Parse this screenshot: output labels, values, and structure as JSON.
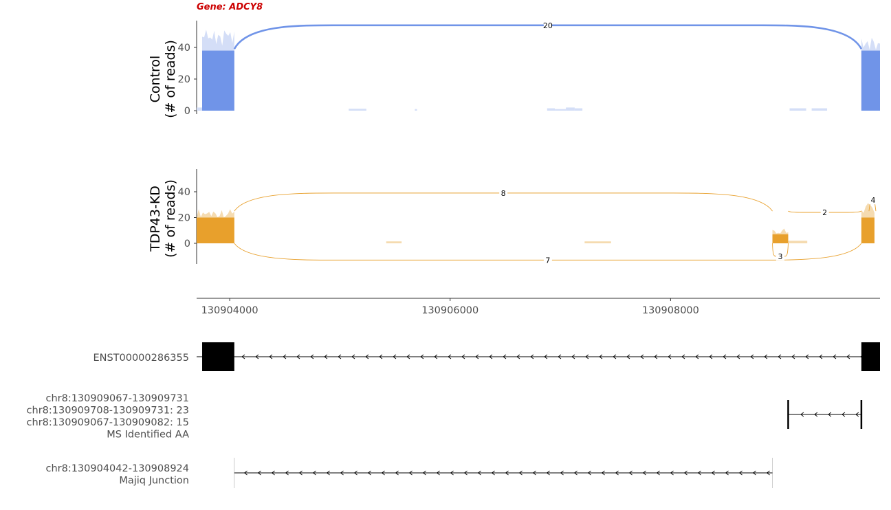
{
  "gene_title": "Gene: ADCY8",
  "chart_data": {
    "type": "area",
    "xaxis": {
      "range": [
        130903700,
        130909900
      ],
      "ticks": [
        130904000,
        130906000,
        130908000
      ],
      "tick_labels": [
        "130904000",
        "130906000",
        "130908000"
      ]
    },
    "panels": [
      {
        "key": "control",
        "ylabel_line1": "Control",
        "ylabel_line2": "(# of reads)",
        "color": "#7094e8",
        "fill_light": "#d4def7",
        "yticks": [
          0,
          20,
          40
        ],
        "ylim": [
          0,
          57
        ],
        "coverage_blocks": [
          {
            "start": 130903700,
            "end": 130903750,
            "height": 2
          },
          {
            "start": 130903750,
            "end": 130904042,
            "height": 38,
            "peak": 52
          },
          {
            "start": 130905080,
            "end": 130905240,
            "height": 1.2
          },
          {
            "start": 130905680,
            "end": 130905700,
            "height": 1
          },
          {
            "start": 130906880,
            "end": 130906950,
            "height": 1.5
          },
          {
            "start": 130906950,
            "end": 130907050,
            "height": 1
          },
          {
            "start": 130907050,
            "end": 130907130,
            "height": 2
          },
          {
            "start": 130907130,
            "end": 130907200,
            "height": 1.5
          },
          {
            "start": 130909080,
            "end": 130909230,
            "height": 1.5
          },
          {
            "start": 130909280,
            "end": 130909420,
            "height": 1.5
          },
          {
            "start": 130909731,
            "end": 130909900,
            "height": 38,
            "peak": 48
          }
        ],
        "junctions": [
          {
            "start": 130904042,
            "end": 130909731,
            "count": "20",
            "side": "top",
            "apex": 54
          }
        ]
      },
      {
        "key": "tdp43",
        "ylabel_line1": "TDP43-KD",
        "ylabel_line2": "(# of reads)",
        "color": "#e8a02c",
        "fill_light": "#f5dbb0",
        "yticks": [
          0,
          20,
          40
        ],
        "ylim": [
          -16,
          57
        ],
        "coverage_blocks": [
          {
            "start": 130903700,
            "end": 130904042,
            "height": 20,
            "peak": 27
          },
          {
            "start": 130905420,
            "end": 130905560,
            "height": 1.5
          },
          {
            "start": 130907220,
            "end": 130907460,
            "height": 1.5
          },
          {
            "start": 130908924,
            "end": 130909067,
            "height": 7,
            "peak": 12
          },
          {
            "start": 130909067,
            "end": 130909240,
            "height": 2
          },
          {
            "start": 130909731,
            "end": 130909850,
            "height": 20,
            "peak": 32
          }
        ],
        "junctions": [
          {
            "start": 130904042,
            "end": 130908924,
            "count": "8",
            "side": "top",
            "apex": 39
          },
          {
            "start": 130904042,
            "end": 130909731,
            "count": "7",
            "side": "bottom",
            "apex": -13
          },
          {
            "start": 130909067,
            "end": 130909731,
            "count": "2",
            "side": "top",
            "apex": 24
          },
          {
            "start": 130908924,
            "end": 130909067,
            "count": "3",
            "side": "bottom",
            "apex": -10
          },
          {
            "start": 130909800,
            "end": 130909850,
            "count": "4",
            "side": "top",
            "apex": 33
          }
        ]
      }
    ],
    "tracks": [
      {
        "key": "transcript",
        "labels": [
          "ENST00000286355"
        ],
        "exons": [
          [
            130903750,
            130904042
          ],
          [
            130909731,
            130909900
          ]
        ],
        "line": [
          130903700,
          130909900
        ],
        "style": "transcript"
      },
      {
        "key": "ms",
        "labels": [
          "chr8:130909067-130909731",
          "chr8:130909708-130909731: 23",
          "chr8:130909067-130909082: 15",
          "MS Identified AA"
        ],
        "line": [
          130909067,
          130909731
        ],
        "style": "ticks"
      },
      {
        "key": "majiq",
        "labels": [
          "chr8:130904042-130908924",
          "Majiq Junction"
        ],
        "line": [
          130904042,
          130908924
        ],
        "style": "junction"
      }
    ]
  }
}
